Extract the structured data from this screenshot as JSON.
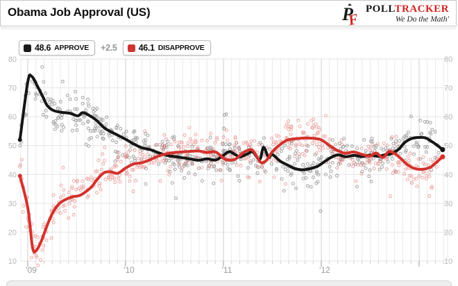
{
  "header": {
    "title": "Obama Job Approval (US)",
    "logo": {
      "word_black": "POLL",
      "word_red": "TRACKER",
      "tagline": "We Do the Math′",
      "brand_red": "#cc2420",
      "brand_black": "#141414"
    }
  },
  "legend": {
    "approve": {
      "value": "48.6",
      "label": "APPROVE",
      "color": "#1a1a1a"
    },
    "delta": "+2.5",
    "disapprove": {
      "value": "46.1",
      "label": "DISAPPROVE",
      "color": "#cd3732"
    }
  },
  "chart_data": {
    "type": "scatter",
    "title": "Obama Job Approval (US)",
    "xlabel": "",
    "ylabel": "",
    "grid": true,
    "legend_position": "top",
    "x_axis": {
      "unit": "years since Jan 2009",
      "range": [
        -0.09,
        4.29
      ],
      "tick_labels": [
        "'09",
        "'10",
        "'11",
        "'12"
      ],
      "tick_positions": [
        0,
        1,
        2,
        3
      ],
      "minor_tick_interval_months": 1
    },
    "y_axis": {
      "range": [
        10,
        80
      ],
      "ticks": [
        10,
        20,
        30,
        40,
        50,
        60,
        70,
        80
      ],
      "label_sides": "both"
    },
    "series": [
      {
        "name": "APPROVE",
        "latest_value": 48.6,
        "color": "#151515",
        "scatter_color": "#3a3a3a",
        "trend": [
          [
            -0.08,
            52
          ],
          [
            0,
            72
          ],
          [
            0.04,
            74
          ],
          [
            0.1,
            70.5
          ],
          [
            0.16,
            66.5
          ],
          [
            0.2,
            63.8
          ],
          [
            0.26,
            62.2
          ],
          [
            0.33,
            61.6
          ],
          [
            0.43,
            61.2
          ],
          [
            0.51,
            60.3
          ],
          [
            0.56,
            61.4
          ],
          [
            0.62,
            60.6
          ],
          [
            0.7,
            58.8
          ],
          [
            0.78,
            56.2
          ],
          [
            0.85,
            54.8
          ],
          [
            0.92,
            53.6
          ],
          [
            1.0,
            52.2
          ],
          [
            1.08,
            50.6
          ],
          [
            1.17,
            49.2
          ],
          [
            1.25,
            48.6
          ],
          [
            1.33,
            47.6
          ],
          [
            1.42,
            46.6
          ],
          [
            1.5,
            46.2
          ],
          [
            1.58,
            45.8
          ],
          [
            1.67,
            45.3
          ],
          [
            1.75,
            44.9
          ],
          [
            1.83,
            45.4
          ],
          [
            1.92,
            45.0
          ],
          [
            2.0,
            46.6
          ],
          [
            2.06,
            47.9
          ],
          [
            2.12,
            46.9
          ],
          [
            2.17,
            46.1
          ],
          [
            2.25,
            47.2
          ],
          [
            2.3,
            47.8
          ],
          [
            2.37,
            45.2
          ],
          [
            2.41,
            49.4
          ],
          [
            2.46,
            45.9
          ],
          [
            2.5,
            46.9
          ],
          [
            2.58,
            44.6
          ],
          [
            2.66,
            43.2
          ],
          [
            2.71,
            42.3
          ],
          [
            2.79,
            41.6
          ],
          [
            2.87,
            41.9
          ],
          [
            2.96,
            42.8
          ],
          [
            3.04,
            44.6
          ],
          [
            3.1,
            45.9
          ],
          [
            3.17,
            46.8
          ],
          [
            3.25,
            46.1
          ],
          [
            3.33,
            46.6
          ],
          [
            3.42,
            46.2
          ],
          [
            3.5,
            46.7
          ],
          [
            3.58,
            46.3
          ],
          [
            3.65,
            46.8
          ],
          [
            3.71,
            47.1
          ],
          [
            3.79,
            48.7
          ],
          [
            3.85,
            51
          ],
          [
            3.92,
            52.4
          ],
          [
            3.98,
            52.8
          ],
          [
            4.06,
            52.7
          ],
          [
            4.12,
            51.6
          ],
          [
            4.18,
            50.2
          ],
          [
            4.24,
            48.6
          ]
        ]
      },
      {
        "name": "DISAPPROVE",
        "latest_value": 46.1,
        "color": "#d2322c",
        "scatter_color": "#d8453f",
        "trend": [
          [
            -0.08,
            39.5
          ],
          [
            0,
            28.5
          ],
          [
            0.05,
            14.5
          ],
          [
            0.09,
            13.8
          ],
          [
            0.14,
            17
          ],
          [
            0.2,
            22.5
          ],
          [
            0.26,
            27
          ],
          [
            0.32,
            29.8
          ],
          [
            0.38,
            31.2
          ],
          [
            0.45,
            32.2
          ],
          [
            0.53,
            32.7
          ],
          [
            0.6,
            34.2
          ],
          [
            0.66,
            36
          ],
          [
            0.71,
            38.3
          ],
          [
            0.78,
            40.6
          ],
          [
            0.85,
            40.9
          ],
          [
            0.92,
            40.4
          ],
          [
            1.0,
            42.2
          ],
          [
            1.08,
            43.6
          ],
          [
            1.17,
            44.1
          ],
          [
            1.25,
            45.1
          ],
          [
            1.33,
            46.3
          ],
          [
            1.42,
            47.2
          ],
          [
            1.5,
            47.6
          ],
          [
            1.58,
            47.8
          ],
          [
            1.67,
            48
          ],
          [
            1.75,
            48.1
          ],
          [
            1.83,
            47.6
          ],
          [
            1.92,
            47.8
          ],
          [
            2.0,
            45.6
          ],
          [
            2.06,
            44.9
          ],
          [
            2.12,
            45.3
          ],
          [
            2.17,
            46.6
          ],
          [
            2.23,
            48.1
          ],
          [
            2.3,
            48.3
          ],
          [
            2.38,
            44.2
          ],
          [
            2.44,
            44.9
          ],
          [
            2.5,
            47.9
          ],
          [
            2.59,
            50.6
          ],
          [
            2.66,
            52
          ],
          [
            2.75,
            52.4
          ],
          [
            2.83,
            52.6
          ],
          [
            2.92,
            52.5
          ],
          [
            3.0,
            52
          ],
          [
            3.08,
            50.1
          ],
          [
            3.17,
            48.2
          ],
          [
            3.25,
            47.3
          ],
          [
            3.33,
            47.8
          ],
          [
            3.42,
            46.9
          ],
          [
            3.5,
            46.4
          ],
          [
            3.56,
            47.4
          ],
          [
            3.63,
            45.9
          ],
          [
            3.69,
            47.9
          ],
          [
            3.75,
            47.2
          ],
          [
            3.81,
            45.6
          ],
          [
            3.88,
            43.4
          ],
          [
            3.96,
            42
          ],
          [
            4.04,
            41.8
          ],
          [
            4.12,
            42.6
          ],
          [
            4.18,
            44.3
          ],
          [
            4.24,
            46.1
          ]
        ]
      }
    ],
    "spread_between_latest": 2.5,
    "scatter": {
      "points_per_series": 540,
      "t_range": [
        -0.085,
        4.2
      ],
      "jitter_sigma": 3.2,
      "outlier_rate": 0.1,
      "outlier_sigma": 6.5,
      "value_clamp": [
        8.5,
        80.8
      ],
      "radius": 2,
      "opacity": 0.42,
      "seed": 1337
    },
    "colors": {
      "grid_minor": "#e9e9e9",
      "grid_year": "#cccccc",
      "grid_h": "#e3e3e3",
      "tick_year": "#9a9a9a",
      "tick_month": "#cfcfcf"
    }
  }
}
